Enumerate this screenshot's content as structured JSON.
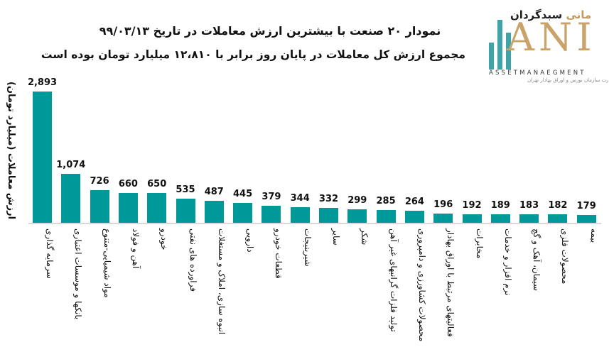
{
  "title_line1": "نمودار ۲۰ صنعت با بیشترین ارزش معاملات در تاریخ ۹۹/۰۳/۱۳",
  "title_line2": "مجموع ارزش کل معاملات در پایان روز برابر با ۱۲،۸۱۰ میلیارد تومان بوده است",
  "logo": {
    "brand_fa_dark": "سبدگردان",
    "brand_fa_gold": "مانی",
    "brand_en_big": "ANI",
    "brand_en_sub": "ASSETMANAEGMENT",
    "brand_tagline": "تحت نظارت سازمان بورس و اوراق بهادار تهران"
  },
  "colors": {
    "bar": "#009999",
    "axis": "#d9d9d9",
    "logo_teal": "#3fa3a8",
    "logo_gold": "#c9a36a"
  },
  "chart_data": {
    "type": "bar",
    "title": "نمودار ۲۰ صنعت با بیشترین ارزش معاملات در تاریخ ۹۹/۰۳/۱۳",
    "subtitle": "مجموع ارزش کل معاملات در پایان روز برابر با ۱۲،۸۱۰ میلیارد تومان بوده است",
    "xlabel": "",
    "ylabel": "ارزش معاملات (میلیارد تومان)",
    "grid": false,
    "legend": null,
    "ylim": [
      0,
      2893
    ],
    "categories": [
      "سرمایه گذاری",
      "بانکها و موسسات اعتباری",
      "مواد شیمیایی-متنوع",
      "آهن و فولاد",
      "خودرو",
      "فراورده های نفتی",
      "انبوه سازی، املاک و مستغلات",
      "دارویی",
      "قطعات خودرو",
      "شیرینیجات",
      "سایر",
      "شکر",
      "تولید فلزات گرانبهای غیر آهن",
      "محصولات کشاورزی و دامپروری",
      "فعالیتهای مرتبط با اوراق بهادار",
      "مخابرات",
      "نرم افزار و خدمات",
      "سیمان، آهک و گچ",
      "محصولات فلزی",
      "بیمه"
    ],
    "values": [
      2893,
      1074,
      726,
      660,
      650,
      535,
      487,
      445,
      379,
      344,
      332,
      299,
      285,
      264,
      196,
      192,
      189,
      183,
      182,
      179
    ],
    "value_labels": [
      "2,893",
      "1,074",
      "726",
      "660",
      "650",
      "535",
      "487",
      "445",
      "379",
      "344",
      "332",
      "299",
      "285",
      "264",
      "196",
      "192",
      "189",
      "183",
      "182",
      "179"
    ]
  }
}
